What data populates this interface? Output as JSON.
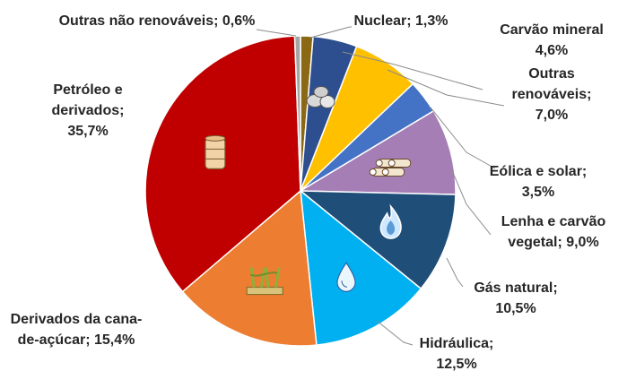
{
  "chart_data": {
    "type": "pie",
    "title": "",
    "slices": [
      {
        "name": "Nuclear",
        "value": 1.3,
        "label": [
          "Nuclear; 1,3%"
        ],
        "color": "#8b6914",
        "icon": ""
      },
      {
        "name": "Carvão mineral",
        "value": 4.6,
        "label": [
          "Carvão mineral",
          "4,6%"
        ],
        "color": "#2e4f8f",
        "icon": "coal-icon"
      },
      {
        "name": "Outras renováveis",
        "value": 7.0,
        "label": [
          "Outras",
          "renováveis;",
          "7,0%"
        ],
        "color": "#ffc000",
        "icon": ""
      },
      {
        "name": "Eólica e solar",
        "value": 3.5,
        "label": [
          "Eólica e solar;",
          "3,5%"
        ],
        "color": "#4472c4",
        "icon": ""
      },
      {
        "name": "Lenha e carvão vegetal",
        "value": 9.0,
        "label": [
          "Lenha e carvão",
          "vegetal; 9,0%"
        ],
        "color": "#a57eb6",
        "icon": "firewood-icon"
      },
      {
        "name": "Gás natural",
        "value": 10.5,
        "label": [
          "Gás natural;",
          "10,5%"
        ],
        "color": "#1f4e79",
        "icon": "flame-icon"
      },
      {
        "name": "Hidráulica",
        "value": 12.5,
        "label": [
          "Hidráulica;",
          "12,5%"
        ],
        "color": "#00b0f0",
        "icon": "water-drop-icon"
      },
      {
        "name": "Derivados da cana-de-açúcar",
        "value": 15.4,
        "label": [
          "Derivados da cana-",
          "de-açúcar; 15,4%"
        ],
        "color": "#ed7d31",
        "icon": "sugarcane-icon"
      },
      {
        "name": "Petróleo e derivados",
        "value": 35.7,
        "label": [
          "Petróleo e",
          "derivados;",
          "35,7%"
        ],
        "color": "#c00000",
        "icon": "oil-barrel-icon"
      },
      {
        "name": "Outras não renováveis",
        "value": 0.6,
        "label": [
          "Outras não renováveis; 0,6%"
        ],
        "color": "#a5a5a5",
        "icon": ""
      }
    ]
  }
}
